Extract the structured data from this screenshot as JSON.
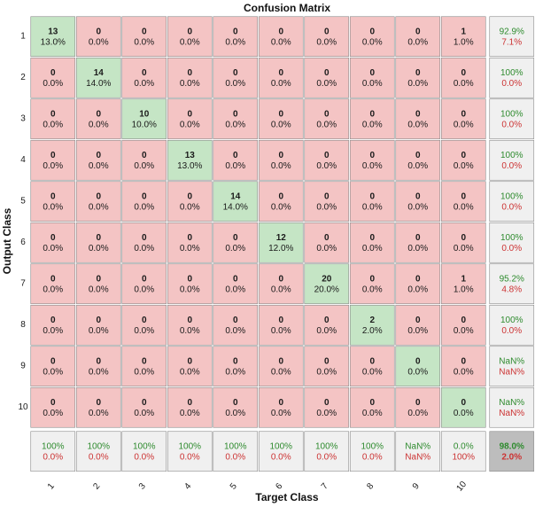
{
  "chart_data": {
    "type": "heatmap",
    "title": "Confusion Matrix",
    "xlabel": "Target Class",
    "ylabel": "Output Class",
    "x_tick_labels": [
      "1",
      "2",
      "3",
      "4",
      "5",
      "6",
      "7",
      "8",
      "9",
      "10"
    ],
    "y_tick_labels": [
      "1",
      "2",
      "3",
      "4",
      "5",
      "6",
      "7",
      "8",
      "9",
      "10"
    ],
    "matrix_counts": [
      [
        13,
        0,
        0,
        0,
        0,
        0,
        0,
        0,
        0,
        1
      ],
      [
        0,
        14,
        0,
        0,
        0,
        0,
        0,
        0,
        0,
        0
      ],
      [
        0,
        0,
        10,
        0,
        0,
        0,
        0,
        0,
        0,
        0
      ],
      [
        0,
        0,
        0,
        13,
        0,
        0,
        0,
        0,
        0,
        0
      ],
      [
        0,
        0,
        0,
        0,
        14,
        0,
        0,
        0,
        0,
        0
      ],
      [
        0,
        0,
        0,
        0,
        0,
        12,
        0,
        0,
        0,
        0
      ],
      [
        0,
        0,
        0,
        0,
        0,
        0,
        20,
        0,
        0,
        1
      ],
      [
        0,
        0,
        0,
        0,
        0,
        0,
        0,
        2,
        0,
        0
      ],
      [
        0,
        0,
        0,
        0,
        0,
        0,
        0,
        0,
        0,
        0
      ],
      [
        0,
        0,
        0,
        0,
        0,
        0,
        0,
        0,
        0,
        0
      ]
    ],
    "matrix_percents": [
      [
        "13.0%",
        "0.0%",
        "0.0%",
        "0.0%",
        "0.0%",
        "0.0%",
        "0.0%",
        "0.0%",
        "0.0%",
        "1.0%"
      ],
      [
        "0.0%",
        "14.0%",
        "0.0%",
        "0.0%",
        "0.0%",
        "0.0%",
        "0.0%",
        "0.0%",
        "0.0%",
        "0.0%"
      ],
      [
        "0.0%",
        "0.0%",
        "10.0%",
        "0.0%",
        "0.0%",
        "0.0%",
        "0.0%",
        "0.0%",
        "0.0%",
        "0.0%"
      ],
      [
        "0.0%",
        "0.0%",
        "0.0%",
        "13.0%",
        "0.0%",
        "0.0%",
        "0.0%",
        "0.0%",
        "0.0%",
        "0.0%"
      ],
      [
        "0.0%",
        "0.0%",
        "0.0%",
        "0.0%",
        "14.0%",
        "0.0%",
        "0.0%",
        "0.0%",
        "0.0%",
        "0.0%"
      ],
      [
        "0.0%",
        "0.0%",
        "0.0%",
        "0.0%",
        "0.0%",
        "12.0%",
        "0.0%",
        "0.0%",
        "0.0%",
        "0.0%"
      ],
      [
        "0.0%",
        "0.0%",
        "0.0%",
        "0.0%",
        "0.0%",
        "0.0%",
        "20.0%",
        "0.0%",
        "0.0%",
        "1.0%"
      ],
      [
        "0.0%",
        "0.0%",
        "0.0%",
        "0.0%",
        "0.0%",
        "0.0%",
        "0.0%",
        "2.0%",
        "0.0%",
        "0.0%"
      ],
      [
        "0.0%",
        "0.0%",
        "0.0%",
        "0.0%",
        "0.0%",
        "0.0%",
        "0.0%",
        "0.0%",
        "0.0%",
        "0.0%"
      ],
      [
        "0.0%",
        "0.0%",
        "0.0%",
        "0.0%",
        "0.0%",
        "0.0%",
        "0.0%",
        "0.0%",
        "0.0%",
        "0.0%"
      ]
    ],
    "row_summary": [
      {
        "correct": "92.9%",
        "error": "7.1%"
      },
      {
        "correct": "100%",
        "error": "0.0%"
      },
      {
        "correct": "100%",
        "error": "0.0%"
      },
      {
        "correct": "100%",
        "error": "0.0%"
      },
      {
        "correct": "100%",
        "error": "0.0%"
      },
      {
        "correct": "100%",
        "error": "0.0%"
      },
      {
        "correct": "95.2%",
        "error": "4.8%"
      },
      {
        "correct": "100%",
        "error": "0.0%"
      },
      {
        "correct": "NaN%",
        "error": "NaN%"
      },
      {
        "correct": "NaN%",
        "error": "NaN%"
      }
    ],
    "column_summary": [
      {
        "correct": "100%",
        "error": "0.0%"
      },
      {
        "correct": "100%",
        "error": "0.0%"
      },
      {
        "correct": "100%",
        "error": "0.0%"
      },
      {
        "correct": "100%",
        "error": "0.0%"
      },
      {
        "correct": "100%",
        "error": "0.0%"
      },
      {
        "correct": "100%",
        "error": "0.0%"
      },
      {
        "correct": "100%",
        "error": "0.0%"
      },
      {
        "correct": "100%",
        "error": "0.0%"
      },
      {
        "correct": "NaN%",
        "error": "NaN%"
      },
      {
        "correct": "0.0%",
        "error": "100%"
      }
    ],
    "overall": {
      "correct": "98.0%",
      "error": "2.0%"
    }
  },
  "colors": {
    "correct_cell": "#c5e5c5",
    "error_cell": "#f4c4c4",
    "summary_cell": "#f0f0f0",
    "overall_cell": "#bdbdbd",
    "good_text": "#2e8b2e",
    "bad_text": "#cc3333"
  }
}
